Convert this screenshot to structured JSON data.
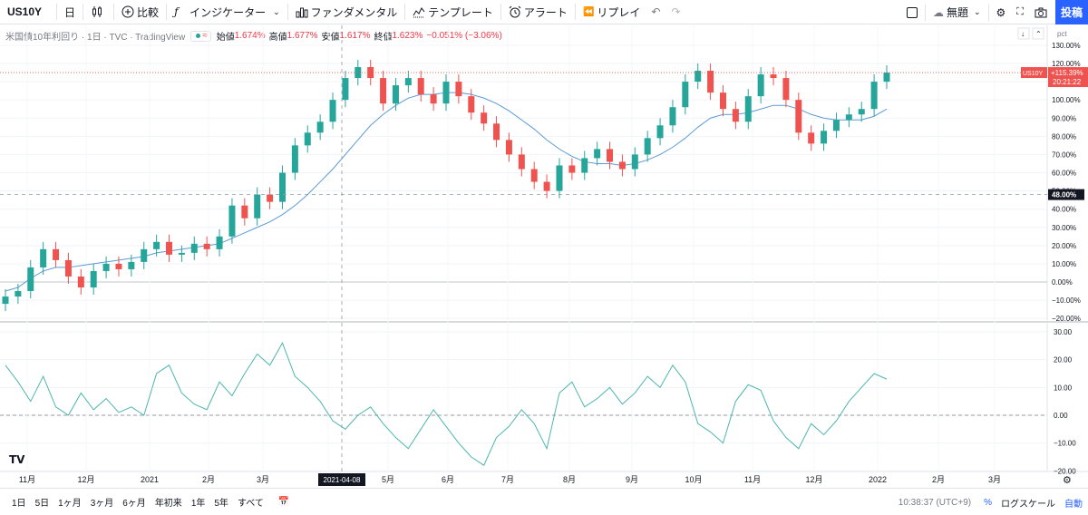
{
  "toolbar": {
    "symbol": "US10Y",
    "interval": "日",
    "compare_label": "比較",
    "indicators_label": "インジケーター",
    "fundamental_label": "ファンダメンタル",
    "templates_label": "テンプレート",
    "alert_label": "アラート",
    "replay_label": "リプレイ",
    "layout_label": "無題",
    "post_label": "投稿"
  },
  "legend": {
    "title": "米国債10年利回り · 1日 · TVC · TradingView",
    "open_label": "始値",
    "open_value": "1.674%",
    "high_label": "高値",
    "high_value": "1.677%",
    "low_label": "安値",
    "low_value": "1.617%",
    "close_label": "終値",
    "close_value": "1.623%",
    "change": "−0.051% (−3.06%)"
  },
  "price_axis": {
    "unit": "pct",
    "main_ticks": [
      "130.00%",
      "120.00%",
      "110.00%",
      "100.00%",
      "90.00%",
      "80.00%",
      "70.00%",
      "60.00%",
      "50.00%",
      "40.00%",
      "30.00%",
      "20.00%",
      "10.00%",
      "0.00%",
      "−10.00%",
      "−20.00%"
    ],
    "sub_ticks": [
      "30.00",
      "20.00",
      "10.00",
      "0.00",
      "−10.00",
      "−20.00"
    ],
    "last_label": "US10Y",
    "last_value": "+115.39%",
    "countdown": "20:21:22",
    "crosshair_value": "48.00%"
  },
  "time_axis": {
    "labels": [
      "11月",
      "12月",
      "2021",
      "2月",
      "3月",
      "4月",
      "5月",
      "6月",
      "7月",
      "8月",
      "9月",
      "10月",
      "11月",
      "12月",
      "2022",
      "2月",
      "3月"
    ],
    "crosshair_date": "2021-04-08"
  },
  "bottom": {
    "ranges": [
      "1日",
      "5日",
      "1ヶ月",
      "3ヶ月",
      "6ヶ月",
      "年初来",
      "1年",
      "5年",
      "すべて"
    ],
    "time": "10:38:37 (UTC+9)",
    "percent": "%",
    "log": "ログスケール",
    "auto": "自動"
  },
  "colors": {
    "up": "#26a69a",
    "down": "#ef5350",
    "ma": "#5b9bd5",
    "osc": "#4db6ac",
    "accent": "#2962ff"
  },
  "chart_data": {
    "type": "candlestick",
    "series": [
      {
        "name": "US10Y",
        "values": [
          -8,
          -5,
          8,
          18,
          12,
          3,
          -3,
          6,
          10,
          7,
          11,
          18,
          22,
          15,
          16,
          21,
          18,
          25,
          42,
          35,
          48,
          44,
          60,
          75,
          82,
          88,
          100,
          112,
          118,
          112,
          98,
          108,
          112,
          103,
          98,
          110,
          102,
          93,
          87,
          78,
          70,
          62,
          55,
          50,
          64,
          60,
          68,
          73,
          66,
          62,
          70,
          79,
          86,
          96,
          110,
          116,
          104,
          95,
          88,
          102,
          114,
          112,
          100,
          82,
          76,
          83,
          89,
          92,
          95,
          110,
          115
        ]
      },
      {
        "name": "MA",
        "values": [
          -5,
          -3,
          2,
          6,
          8,
          8,
          9,
          10,
          11,
          12,
          13,
          14,
          16,
          17,
          18,
          19,
          20,
          21,
          24,
          27,
          30,
          33,
          37,
          42,
          48,
          55,
          62,
          70,
          78,
          86,
          92,
          97,
          101,
          103,
          103,
          104,
          104,
          103,
          101,
          98,
          94,
          89,
          84,
          78,
          73,
          69,
          66,
          65,
          65,
          64,
          65,
          67,
          70,
          74,
          79,
          85,
          90,
          92,
          92,
          93,
          95,
          97,
          97,
          95,
          92,
          90,
          89,
          89,
          89,
          91,
          95
        ]
      },
      {
        "name": "Oscillator",
        "values": [
          18,
          12,
          5,
          14,
          3,
          0,
          8,
          2,
          6,
          1,
          3,
          0,
          15,
          18,
          8,
          4,
          2,
          12,
          7,
          15,
          22,
          18,
          26,
          14,
          10,
          5,
          -2,
          -5,
          0,
          3,
          -3,
          -8,
          -12,
          -5,
          2,
          -4,
          -10,
          -15,
          -18,
          -8,
          -4,
          2,
          -3,
          -12,
          8,
          12,
          3,
          6,
          10,
          4,
          8,
          14,
          10,
          18,
          12,
          -3,
          -6,
          -10,
          5,
          11,
          9,
          -2,
          -8,
          -12,
          -3,
          -7,
          -2,
          5,
          10,
          15,
          13
        ]
      }
    ],
    "xlabel": "",
    "ylabel": "",
    "ylim": [
      -20,
      130
    ]
  }
}
